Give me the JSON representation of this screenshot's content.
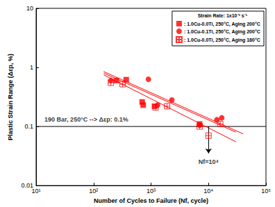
{
  "chart_data": {
    "type": "scatter",
    "log": true,
    "grid": false,
    "legend": "upper right",
    "legend_title": "Strain Rate: 1x10⁻³ s⁻¹",
    "x_label": "Number of Cycles to Failure (Nf, cycle)",
    "y_label": "Plastic Strain Range (Δεp, %)",
    "xlim": [
      10,
      100000
    ],
    "xticks": [
      {
        "value": 10,
        "label": "10¹"
      },
      {
        "value": 100,
        "label": "10²"
      },
      {
        "value": 1000,
        "label": "10³"
      },
      {
        "value": 10000,
        "label": "10⁴"
      },
      {
        "value": 100000,
        "label": "10⁵"
      }
    ],
    "ylim": [
      0.01,
      10
    ],
    "yticks": [
      0.01,
      0.1,
      1,
      10
    ],
    "series": [
      {
        "name": ": 1.0Cu-0.0Ti, 250°C, Aging 200°C",
        "color": "#ff0000",
        "marker": "square",
        "x": [
          250,
          370,
          700,
          730,
          1150,
          7000
        ],
        "values": [
          0.6,
          0.62,
          0.26,
          0.23,
          0.22,
          0.11
        ],
        "fit_x": [
          150,
          30000
        ],
        "fit_values": [
          0.8,
          0.08
        ]
      },
      {
        "name": ": 1.0Cu-0.1Ti, 250°C, Aging 200°C",
        "color": "#ff0000",
        "marker": "circle",
        "x": [
          200,
          900,
          1300,
          2300,
          7000,
          14000,
          17000
        ],
        "values": [
          0.6,
          0.63,
          0.23,
          0.28,
          0.105,
          0.13,
          0.14
        ],
        "fit_x": [
          150,
          40000
        ],
        "fit_values": [
          0.85,
          0.075
        ]
      },
      {
        "name": ": 1.0Cu-0.0Ti, 250°C, Aging 180°C",
        "color": "#ff0000",
        "marker": "square_crossed",
        "x": [
          200,
          320,
          1200,
          1900,
          7000,
          10000,
          16000
        ],
        "values": [
          0.55,
          0.52,
          0.21,
          0.22,
          0.1,
          0.07,
          0.11
        ],
        "fit_x": [
          150,
          30000
        ],
        "fit_values": [
          0.75,
          0.055
        ]
      }
    ],
    "reference_line": {
      "y": 0.1,
      "color": "#000000"
    },
    "arrow": {
      "x": 10000,
      "y_from": 0.1,
      "y_to": 0.035,
      "color": "#000000"
    },
    "annotations": [
      {
        "text": "190 Bar, 250°C --> Δεp: 0.1%",
        "x": 14,
        "y": 0.13
      },
      {
        "text": "Nf=10⁴",
        "x": 10000,
        "y": 0.025
      }
    ]
  }
}
